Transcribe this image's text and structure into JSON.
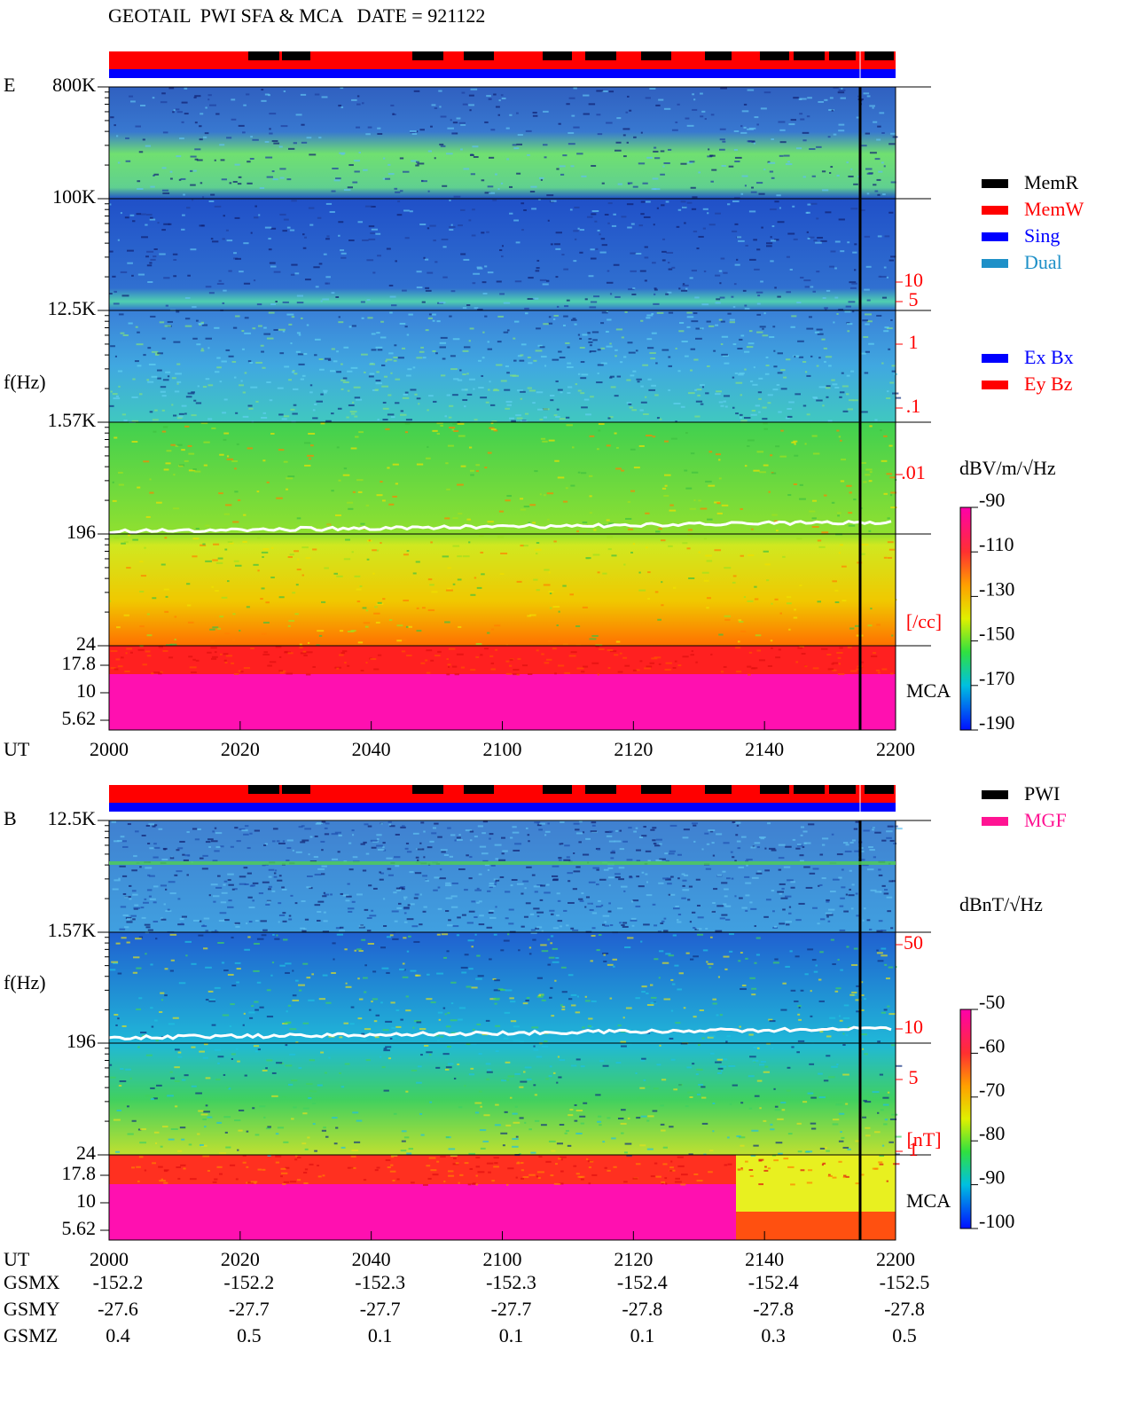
{
  "header": {
    "title": "GEOTAIL  PWI SFA & MCA   DATE = 921122"
  },
  "panels": [
    {
      "label": "E",
      "ylabel": "f(Hz)",
      "yticks": [
        "800K",
        "100K",
        "12.5K",
        "1.57K",
        "196",
        "24",
        "17.8",
        "10",
        "5.62"
      ],
      "side_ticks": [
        "10",
        "5",
        "1",
        ".1",
        ".01"
      ],
      "side_unit": "[/cc]",
      "mca": "MCA",
      "xlabel": "UT",
      "xticks": [
        "2000",
        "2020",
        "2040",
        "2100",
        "2120",
        "2140",
        "2200"
      ],
      "unit": "dBV/m/√Hz",
      "colorbar_ticks": [
        "-90",
        "-110",
        "-130",
        "-150",
        "-170",
        "-190"
      ]
    },
    {
      "label": "B",
      "ylabel": "f(Hz)",
      "yticks": [
        "12.5K",
        "1.57K",
        "196",
        "24",
        "17.8",
        "10",
        "5.62"
      ],
      "side_ticks": [
        "50",
        "10",
        "5",
        "1"
      ],
      "side_unit": "[nT]",
      "mca": "MCA",
      "xlabel": "UT",
      "xticks": [
        "2000",
        "2020",
        "2040",
        "2100",
        "2120",
        "2140",
        "2200"
      ],
      "unit": "dBnT/√Hz",
      "colorbar_ticks": [
        "-50",
        "-60",
        "-70",
        "-80",
        "-90",
        "-100"
      ]
    }
  ],
  "legend_top": [
    {
      "name": "MemR",
      "color": "#000000"
    },
    {
      "name": "MemW",
      "color": "#ff0000"
    },
    {
      "name": "Sing",
      "color": "#0000ff"
    },
    {
      "name": "Dual",
      "color": "#1e90c8"
    }
  ],
  "legend_comp": [
    {
      "name": "Ex Bx",
      "color": "#0000ff"
    },
    {
      "name": "Ey Bz",
      "color": "#ff0000"
    }
  ],
  "legend_b": [
    {
      "name": "PWI",
      "color": "#000000"
    },
    {
      "name": "MGF",
      "color": "#ff1493"
    }
  ],
  "orbit": [
    {
      "name": "GSMX",
      "values": [
        "-152.2",
        "-152.2",
        "-152.3",
        "-152.3",
        "-152.4",
        "-152.4",
        "-152.5"
      ]
    },
    {
      "name": "GSMY",
      "values": [
        "-27.6",
        "-27.7",
        "-27.7",
        "-27.7",
        "-27.8",
        "-27.8",
        "-27.8"
      ]
    },
    {
      "name": "GSMZ",
      "values": [
        "0.4",
        "0.5",
        "0.1",
        "0.1",
        "0.1",
        "0.3",
        "0.5"
      ]
    }
  ]
}
